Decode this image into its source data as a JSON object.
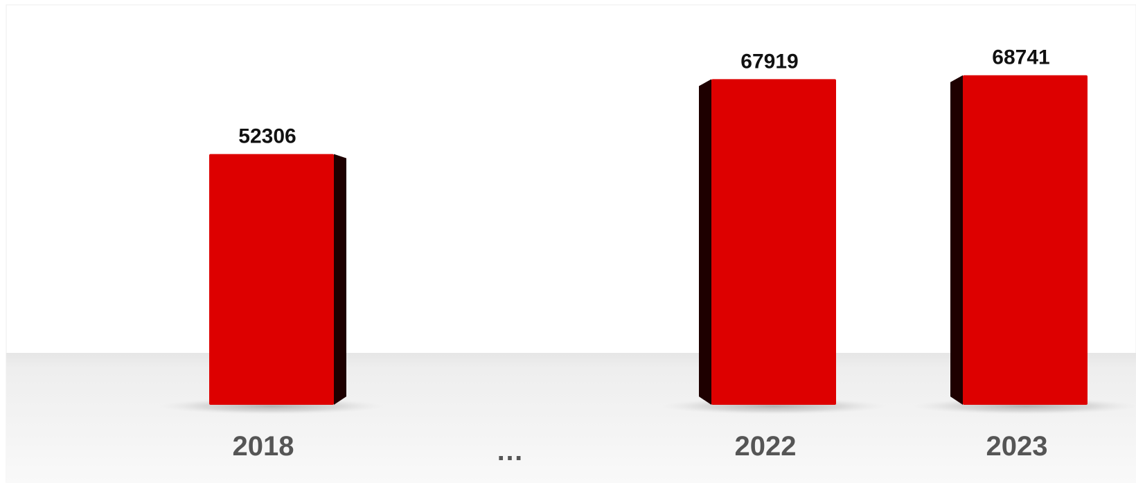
{
  "chart_data": {
    "type": "bar",
    "style": "3d",
    "categories": [
      "2018",
      "…",
      "2022",
      "2023"
    ],
    "values": [
      52306,
      null,
      67919,
      68741
    ],
    "data_labels": [
      "52306",
      "",
      "67919",
      "68741"
    ],
    "title": "",
    "xlabel": "",
    "ylabel": "",
    "ylim": [
      0,
      70000
    ],
    "grid": false,
    "legend": "none",
    "colors": {
      "bar_front": "#dd0000",
      "bar_side": "#1e0000",
      "tick_text": "#555555",
      "value_text": "#111111",
      "floor_top": "#ececec",
      "floor_bottom": "#f8f8f8"
    }
  }
}
